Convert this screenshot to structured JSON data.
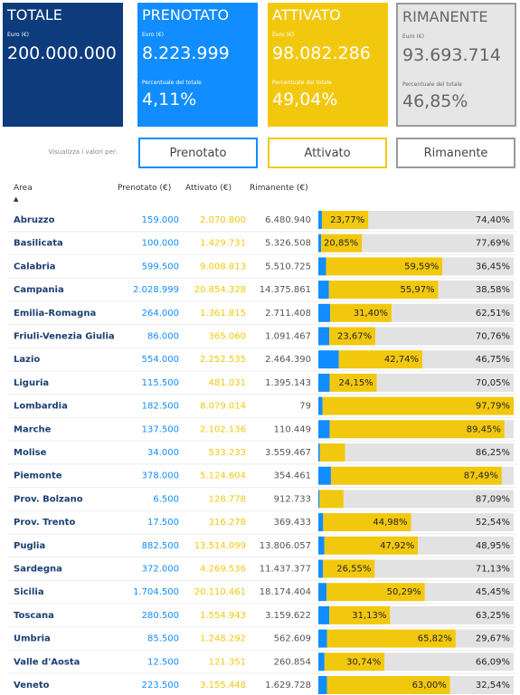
{
  "cards": [
    {
      "title": "TOTALE",
      "unit": "Euro (€)",
      "value": "200.000.000"
    },
    {
      "title": "PRENOTATO",
      "unit": "Euro (€)",
      "value": "8.223.999",
      "pct_label": "Percentuale del totale",
      "pct": "4,11%"
    },
    {
      "title": "ATTIVATO",
      "unit": "Euro (€)",
      "value": "98.082.286",
      "pct_label": "Percentuale del totale",
      "pct": "49,04%"
    },
    {
      "title": "RIMANENTE",
      "unit": "Euro (€)",
      "value": "93.693.714",
      "pct_label": "Percentuale del totale",
      "pct": "46,85%"
    }
  ],
  "filter": {
    "label": "Visualizza i valori per:",
    "buttons": [
      "Prenotato",
      "Attivato",
      "Rimanente"
    ]
  },
  "table": {
    "columns": [
      "Area",
      "Prenotato (€)",
      "Attivato (€)",
      "Rimanente (€)"
    ],
    "rows": [
      {
        "area": "Abruzzo",
        "prenotato": "159.000",
        "attivato": "2.070.800",
        "rimanente": "6.480.940",
        "bar": {
          "prenotato": 1.83,
          "attivato": {
            "value": 23.77,
            "label": "23,77%"
          },
          "rimanente": {
            "value": 74.4,
            "label": "74,40%"
          }
        }
      },
      {
        "area": "Basilicata",
        "prenotato": "100.000",
        "attivato": "1.429.731",
        "rimanente": "5.326.508",
        "bar": {
          "prenotato": 1.46,
          "attivato": {
            "value": 20.85,
            "label": "20,85%"
          },
          "rimanente": {
            "value": 77.69,
            "label": "77,69%"
          }
        }
      },
      {
        "area": "Calabria",
        "prenotato": "599.500",
        "attivato": "9.008.813",
        "rimanente": "5.510.725",
        "bar": {
          "prenotato": 3.96,
          "attivato": {
            "value": 59.59,
            "label": "59,59%"
          },
          "rimanente": {
            "value": 36.45,
            "label": "36,45%"
          }
        }
      },
      {
        "area": "Campania",
        "prenotato": "2.028.999",
        "attivato": "20.854.328",
        "rimanente": "14.375.861",
        "bar": {
          "prenotato": 5.45,
          "attivato": {
            "value": 55.97,
            "label": "55,97%"
          },
          "rimanente": {
            "value": 38.58,
            "label": "38,58%"
          }
        }
      },
      {
        "area": "Emilia-Romagna",
        "prenotato": "264.000",
        "attivato": "1.361.815",
        "rimanente": "2.711.408",
        "bar": {
          "prenotato": 6.09,
          "attivato": {
            "value": 31.4,
            "label": "31,40%"
          },
          "rimanente": {
            "value": 62.51,
            "label": "62,51%"
          }
        }
      },
      {
        "area": "Friuli-Venezia Giulia",
        "prenotato": "86.000",
        "attivato": "365.060",
        "rimanente": "1.091.467",
        "bar": {
          "prenotato": 5.57,
          "attivato": {
            "value": 23.67,
            "label": "23,67%"
          },
          "rimanente": {
            "value": 70.76,
            "label": "70,76%"
          }
        }
      },
      {
        "area": "Lazio",
        "prenotato": "554.000",
        "attivato": "2.252.535",
        "rimanente": "2.464.390",
        "bar": {
          "prenotato": 10.51,
          "attivato": {
            "value": 42.74,
            "label": "42,74%"
          },
          "rimanente": {
            "value": 46.75,
            "label": "46,75%"
          }
        }
      },
      {
        "area": "Liguria",
        "prenotato": "115.500",
        "attivato": "481.031",
        "rimanente": "1.395.143",
        "bar": {
          "prenotato": 5.8,
          "attivato": {
            "value": 24.15,
            "label": "24,15%"
          },
          "rimanente": {
            "value": 70.05,
            "label": "70,05%"
          }
        }
      },
      {
        "area": "Lombardia",
        "prenotato": "182.500",
        "attivato": "8.079.014",
        "rimanente": "79",
        "bar": {
          "prenotato": 2.21,
          "attivato": {
            "value": 97.79,
            "label": "97,79%"
          },
          "rimanente": 0
        }
      },
      {
        "area": "Marche",
        "prenotato": "137.500",
        "attivato": "2.102.136",
        "rimanente": "110.449",
        "bar": {
          "prenotato": 5.85,
          "attivato": {
            "value": 89.45,
            "label": "89,45%"
          },
          "rimanente": 4.7
        }
      },
      {
        "area": "Molise",
        "prenotato": "34.000",
        "attivato": "533.233",
        "rimanente": "3.559.467",
        "bar": {
          "prenotato": 0.82,
          "attivato": 12.92,
          "rimanente": {
            "value": 86.25,
            "label": "86,25%"
          }
        }
      },
      {
        "area": "Piemonte",
        "prenotato": "378.000",
        "attivato": "5.124.604",
        "rimanente": "354.461",
        "bar": {
          "prenotato": 6.45,
          "attivato": {
            "value": 87.49,
            "label": "87,49%"
          },
          "rimanente": 6.05
        }
      },
      {
        "area": "Prov. Bolzano",
        "prenotato": "6.500",
        "attivato": "128.778",
        "rimanente": "912.733",
        "bar": {
          "prenotato": 0.62,
          "attivato": 12.29,
          "rimanente": {
            "value": 87.09,
            "label": "87,09%"
          }
        }
      },
      {
        "area": "Prov. Trento",
        "prenotato": "17.500",
        "attivato": "316.278",
        "rimanente": "369.433",
        "bar": {
          "prenotato": 2.48,
          "attivato": {
            "value": 44.98,
            "label": "44,98%"
          },
          "rimanente": {
            "value": 52.54,
            "label": "52,54%"
          }
        }
      },
      {
        "area": "Puglia",
        "prenotato": "882.500",
        "attivato": "13.514.099",
        "rimanente": "13.806.057",
        "bar": {
          "prenotato": 3.13,
          "attivato": {
            "value": 47.92,
            "label": "47,92%"
          },
          "rimanente": {
            "value": 48.95,
            "label": "48,95%"
          }
        }
      },
      {
        "area": "Sardegna",
        "prenotato": "372.000",
        "attivato": "4.269.536",
        "rimanente": "11.437.377",
        "bar": {
          "prenotato": 2.32,
          "attivato": {
            "value": 26.55,
            "label": "26,55%"
          },
          "rimanente": {
            "value": 71.13,
            "label": "71,13%"
          }
        }
      },
      {
        "area": "Sicilia",
        "prenotato": "1.704.500",
        "attivato": "20.110.461",
        "rimanente": "18.174.404",
        "bar": {
          "prenotato": 4.26,
          "attivato": {
            "value": 50.29,
            "label": "50,29%"
          },
          "rimanente": {
            "value": 45.45,
            "label": "45,45%"
          }
        }
      },
      {
        "area": "Toscana",
        "prenotato": "280.500",
        "attivato": "1.554.943",
        "rimanente": "3.159.622",
        "bar": {
          "prenotato": 5.62,
          "attivato": {
            "value": 31.13,
            "label": "31,13%"
          },
          "rimanente": {
            "value": 63.25,
            "label": "63,25%"
          }
        }
      },
      {
        "area": "Umbria",
        "prenotato": "85.500",
        "attivato": "1.248.292",
        "rimanente": "562.609",
        "bar": {
          "prenotato": 4.51,
          "attivato": {
            "value": 65.82,
            "label": "65,82%"
          },
          "rimanente": {
            "value": 29.67,
            "label": "29,67%"
          }
        }
      },
      {
        "area": "Valle d'Aosta",
        "prenotato": "12.500",
        "attivato": "121.351",
        "rimanente": "260.854",
        "bar": {
          "prenotato": 3.17,
          "attivato": {
            "value": 30.74,
            "label": "30,74%"
          },
          "rimanente": {
            "value": 66.09,
            "label": "66,09%"
          }
        }
      },
      {
        "area": "Veneto",
        "prenotato": "223.500",
        "attivato": "3.155.448",
        "rimanente": "1.629.728",
        "bar": {
          "prenotato": 4.46,
          "attivato": {
            "value": 63.0,
            "label": "63,00%"
          },
          "rimanente": {
            "value": 32.54,
            "label": "32,54%"
          }
        }
      }
    ]
  }
}
